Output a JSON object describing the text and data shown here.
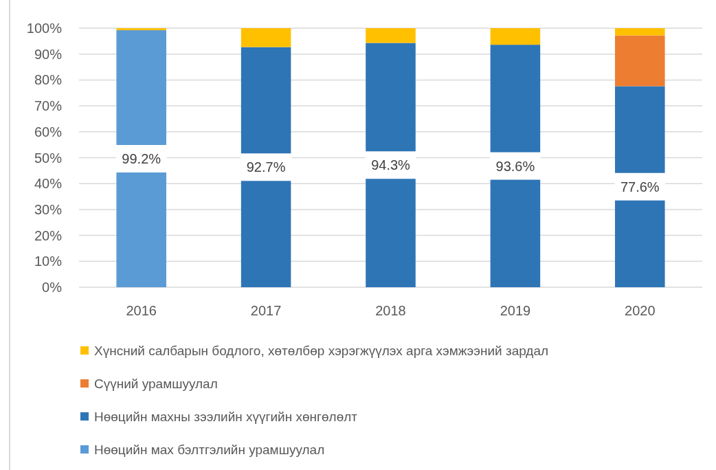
{
  "chart_data": {
    "type": "bar",
    "stacked": true,
    "categories": [
      "2016",
      "2017",
      "2018",
      "2019",
      "2020"
    ],
    "series": [
      {
        "name": "Нөөцийн мах бэлтгэлийн урамшуулал",
        "color": "#5b9bd5",
        "values": [
          99.2,
          null,
          null,
          null,
          null
        ],
        "value_labels": [
          "99.2%",
          null,
          null,
          null,
          null
        ]
      },
      {
        "name": "Нөөцийн махны зээлийн хүүгийн хөнгөлөлт",
        "color": "#2e75b6",
        "values": [
          null,
          92.7,
          94.3,
          93.6,
          77.6
        ],
        "value_labels": [
          null,
          "92.7%",
          "94.3%",
          "93.6%",
          "77.6%"
        ]
      },
      {
        "name": "Сүүний урамшуулал",
        "color": "#ed7d31",
        "values": [
          null,
          null,
          null,
          null,
          19.6
        ]
      },
      {
        "name": "Хүнсний салбарын бодлого, хөтөлбөр хэрэгжүүлэх арга хэмжээний зардал",
        "color": "#ffc000",
        "values": [
          0.8,
          7.3,
          5.7,
          6.4,
          2.8
        ]
      }
    ],
    "ylim": [
      0,
      100
    ],
    "yticks": [
      {
        "value": 0,
        "label": "0%"
      },
      {
        "value": 10,
        "label": "10%"
      },
      {
        "value": 20,
        "label": "20%"
      },
      {
        "value": 30,
        "label": "30%"
      },
      {
        "value": 40,
        "label": "40%"
      },
      {
        "value": 50,
        "label": "50%"
      },
      {
        "value": 60,
        "label": "60%"
      },
      {
        "value": 70,
        "label": "70%"
      },
      {
        "value": 80,
        "label": "80%"
      },
      {
        "value": 90,
        "label": "90%"
      },
      {
        "value": 100,
        "label": "100%"
      }
    ],
    "grid": "y",
    "legend": "bottom"
  }
}
